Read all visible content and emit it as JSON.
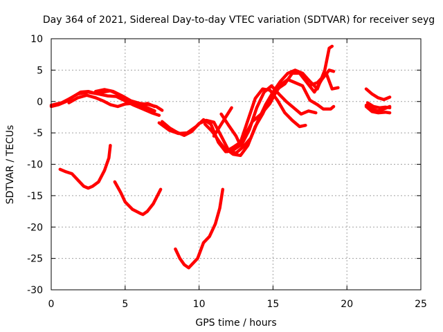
{
  "chart_data": {
    "type": "line",
    "title": "Day 364 of 2021, Sidereal Day-to-day VTEC variation (SDTVAR) for receiver seyg",
    "xlabel": "GPS time / hours",
    "ylabel": "SDTVAR / TECUs",
    "xlim": [
      0,
      25
    ],
    "ylim": [
      -30,
      10
    ],
    "xticks": [
      0,
      5,
      10,
      15,
      20,
      25
    ],
    "yticks": [
      -30,
      -25,
      -20,
      -15,
      -10,
      -5,
      0,
      5,
      10
    ],
    "grid": true,
    "series_color": "#ff0000",
    "series": [
      {
        "name": "track-1",
        "points": [
          [
            0.0,
            -0.8
          ],
          [
            0.5,
            -0.5
          ],
          [
            1.0,
            0.0
          ],
          [
            1.5,
            0.8
          ],
          [
            2.0,
            1.5
          ],
          [
            2.5,
            1.6
          ],
          [
            3.0,
            1.3
          ],
          [
            3.5,
            1.5
          ],
          [
            4.0,
            1.7
          ],
          [
            4.5,
            1.2
          ],
          [
            5.0,
            0.4
          ],
          [
            5.5,
            0.0
          ],
          [
            6.0,
            -0.5
          ],
          [
            6.5,
            -1.0
          ],
          [
            7.0,
            -1.5
          ]
        ]
      },
      {
        "name": "track-2",
        "points": [
          [
            0.0,
            -0.6
          ],
          [
            0.7,
            -0.2
          ],
          [
            1.2,
            0.4
          ],
          [
            1.8,
            1.2
          ],
          [
            2.5,
            1.5
          ],
          [
            3.2,
            1.2
          ],
          [
            3.8,
            0.9
          ],
          [
            4.4,
            0.8
          ],
          [
            5.0,
            0.1
          ],
          [
            5.6,
            -0.6
          ],
          [
            6.2,
            -1.2
          ],
          [
            6.8,
            -1.8
          ],
          [
            7.3,
            -2.2
          ]
        ]
      },
      {
        "name": "track-3",
        "points": [
          [
            1.2,
            -0.2
          ],
          [
            1.8,
            0.6
          ],
          [
            2.4,
            1.0
          ],
          [
            3.0,
            0.6
          ],
          [
            3.5,
            0.1
          ],
          [
            4.0,
            -0.5
          ],
          [
            4.5,
            -0.8
          ],
          [
            5.0,
            -0.4
          ],
          [
            5.5,
            -0.3
          ],
          [
            6.0,
            -0.6
          ],
          [
            6.5,
            -0.3
          ],
          [
            7.0,
            -0.8
          ]
        ]
      },
      {
        "name": "track-4",
        "points": [
          [
            3.0,
            1.6
          ],
          [
            3.6,
            1.9
          ],
          [
            4.2,
            1.6
          ],
          [
            4.8,
            0.9
          ],
          [
            5.4,
            0.1
          ],
          [
            6.0,
            -0.3
          ],
          [
            6.6,
            -0.5
          ],
          [
            7.1,
            -0.8
          ],
          [
            7.5,
            -1.4
          ]
        ]
      },
      {
        "name": "track-5",
        "points": [
          [
            0.6,
            -10.8
          ],
          [
            1.0,
            -11.2
          ],
          [
            1.4,
            -11.5
          ],
          [
            1.8,
            -12.5
          ],
          [
            2.2,
            -13.5
          ],
          [
            2.5,
            -13.8
          ],
          [
            2.8,
            -13.5
          ],
          [
            3.2,
            -12.8
          ],
          [
            3.6,
            -11.0
          ],
          [
            3.9,
            -9.0
          ],
          [
            4.0,
            -7.0
          ]
        ]
      },
      {
        "name": "track-6",
        "points": [
          [
            4.3,
            -12.8
          ],
          [
            4.7,
            -14.5
          ],
          [
            5.0,
            -16.0
          ],
          [
            5.5,
            -17.2
          ],
          [
            6.0,
            -17.8
          ],
          [
            6.2,
            -18.0
          ],
          [
            6.5,
            -17.5
          ],
          [
            6.9,
            -16.3
          ],
          [
            7.4,
            -14.0
          ]
        ]
      },
      {
        "name": "track-7",
        "points": [
          [
            8.4,
            -23.5
          ],
          [
            8.7,
            -25.0
          ],
          [
            9.0,
            -26.0
          ],
          [
            9.3,
            -26.5
          ],
          [
            9.5,
            -26.0
          ],
          [
            9.9,
            -25.0
          ],
          [
            10.3,
            -22.5
          ],
          [
            10.7,
            -21.5
          ],
          [
            11.1,
            -19.5
          ],
          [
            11.4,
            -17.0
          ],
          [
            11.6,
            -14.0
          ]
        ]
      },
      {
        "name": "track-8",
        "points": [
          [
            7.5,
            -3.2
          ],
          [
            8.0,
            -4.2
          ],
          [
            8.5,
            -4.9
          ],
          [
            9.0,
            -5.4
          ],
          [
            9.5,
            -4.8
          ],
          [
            10.0,
            -3.5
          ],
          [
            10.5,
            -3.0
          ],
          [
            11.0,
            -3.3
          ],
          [
            11.5,
            -5.5
          ],
          [
            12.0,
            -7.8
          ],
          [
            12.5,
            -8.2
          ],
          [
            13.0,
            -7.2
          ],
          [
            13.5,
            -5.8
          ],
          [
            14.0,
            -3.0
          ],
          [
            14.5,
            -0.5
          ],
          [
            15.0,
            1.5
          ],
          [
            15.5,
            3.2
          ],
          [
            16.0,
            4.5
          ],
          [
            16.5,
            5.0
          ],
          [
            17.0,
            4.5
          ],
          [
            17.5,
            3.2
          ],
          [
            18.0,
            2.0
          ],
          [
            18.5,
            5.0
          ],
          [
            18.8,
            8.5
          ],
          [
            19.0,
            8.8
          ]
        ]
      },
      {
        "name": "track-9",
        "points": [
          [
            7.3,
            -3.4
          ],
          [
            8.0,
            -4.6
          ],
          [
            8.6,
            -5.1
          ],
          [
            9.2,
            -5.0
          ],
          [
            9.8,
            -4.0
          ],
          [
            10.3,
            -2.9
          ],
          [
            10.8,
            -3.6
          ],
          [
            11.3,
            -6.5
          ],
          [
            11.8,
            -8.0
          ],
          [
            12.3,
            -7.3
          ],
          [
            12.8,
            -6.5
          ],
          [
            13.3,
            -3.0
          ],
          [
            13.8,
            0.5
          ],
          [
            14.3,
            2.0
          ],
          [
            14.8,
            1.8
          ],
          [
            15.3,
            0.2
          ],
          [
            15.8,
            -1.8
          ],
          [
            16.3,
            -3.0
          ],
          [
            16.8,
            -4.0
          ],
          [
            17.2,
            -3.8
          ]
        ]
      },
      {
        "name": "track-10",
        "points": [
          [
            10.4,
            -3.6
          ],
          [
            10.9,
            -4.8
          ],
          [
            11.4,
            -6.5
          ],
          [
            11.9,
            -8.0
          ],
          [
            12.4,
            -7.6
          ],
          [
            12.9,
            -6.8
          ],
          [
            13.4,
            -4.5
          ],
          [
            13.9,
            -1.0
          ],
          [
            14.4,
            1.5
          ],
          [
            14.9,
            2.5
          ],
          [
            15.4,
            1.2
          ],
          [
            15.9,
            0.0
          ],
          [
            16.4,
            -1.0
          ],
          [
            16.9,
            -2.0
          ],
          [
            17.4,
            -1.5
          ],
          [
            17.9,
            -1.8
          ]
        ]
      },
      {
        "name": "track-11",
        "points": [
          [
            11.5,
            -2.0
          ],
          [
            12.0,
            -3.8
          ],
          [
            12.5,
            -5.5
          ],
          [
            12.8,
            -7.0
          ],
          [
            13.2,
            -5.0
          ],
          [
            13.6,
            -3.2
          ],
          [
            14.2,
            -2.0
          ],
          [
            14.8,
            -0.3
          ],
          [
            15.2,
            1.5
          ],
          [
            15.6,
            2.8
          ],
          [
            16.0,
            3.5
          ],
          [
            16.5,
            3.0
          ],
          [
            17.0,
            2.5
          ],
          [
            17.5,
            0.2
          ],
          [
            18.0,
            -0.5
          ],
          [
            18.4,
            -1.2
          ],
          [
            18.9,
            -1.2
          ],
          [
            19.1,
            -0.8
          ]
        ]
      },
      {
        "name": "track-12",
        "points": [
          [
            11.8,
            -7.5
          ],
          [
            12.3,
            -8.4
          ],
          [
            12.8,
            -8.6
          ],
          [
            13.3,
            -7.0
          ],
          [
            13.8,
            -4.0
          ],
          [
            14.3,
            -2.0
          ],
          [
            14.8,
            0.5
          ],
          [
            15.3,
            2.0
          ],
          [
            15.8,
            2.8
          ],
          [
            16.3,
            4.5
          ],
          [
            16.8,
            4.5
          ],
          [
            17.3,
            3.0
          ],
          [
            17.8,
            1.5
          ],
          [
            18.3,
            3.5
          ],
          [
            18.8,
            5.0
          ],
          [
            19.1,
            4.8
          ]
        ]
      },
      {
        "name": "track-13",
        "points": [
          [
            11.0,
            -5.5
          ],
          [
            11.4,
            -4.0
          ],
          [
            11.8,
            -2.5
          ],
          [
            12.2,
            -1.0
          ]
        ]
      },
      {
        "name": "track-14",
        "points": [
          [
            17.5,
            2.6
          ],
          [
            18.0,
            3.0
          ],
          [
            18.6,
            4.5
          ],
          [
            19.0,
            2.0
          ],
          [
            19.4,
            2.2
          ]
        ]
      },
      {
        "name": "track-15",
        "points": [
          [
            21.3,
            2.0
          ],
          [
            21.7,
            1.2
          ],
          [
            22.1,
            0.6
          ],
          [
            22.5,
            0.3
          ],
          [
            22.9,
            0.7
          ]
        ]
      },
      {
        "name": "track-16",
        "points": [
          [
            21.3,
            -0.6
          ],
          [
            21.7,
            -1.2
          ],
          [
            22.1,
            -1.5
          ],
          [
            22.5,
            -1.2
          ],
          [
            22.9,
            -0.8
          ]
        ]
      },
      {
        "name": "track-17",
        "points": [
          [
            21.3,
            -0.8
          ],
          [
            21.7,
            -1.6
          ],
          [
            22.1,
            -1.8
          ],
          [
            22.6,
            -1.7
          ],
          [
            22.9,
            -1.8
          ]
        ]
      },
      {
        "name": "track-18",
        "points": [
          [
            21.4,
            -0.2
          ],
          [
            21.8,
            -0.8
          ],
          [
            22.2,
            -1.0
          ],
          [
            22.6,
            -0.9
          ],
          [
            22.9,
            -1.0
          ]
        ]
      }
    ]
  }
}
